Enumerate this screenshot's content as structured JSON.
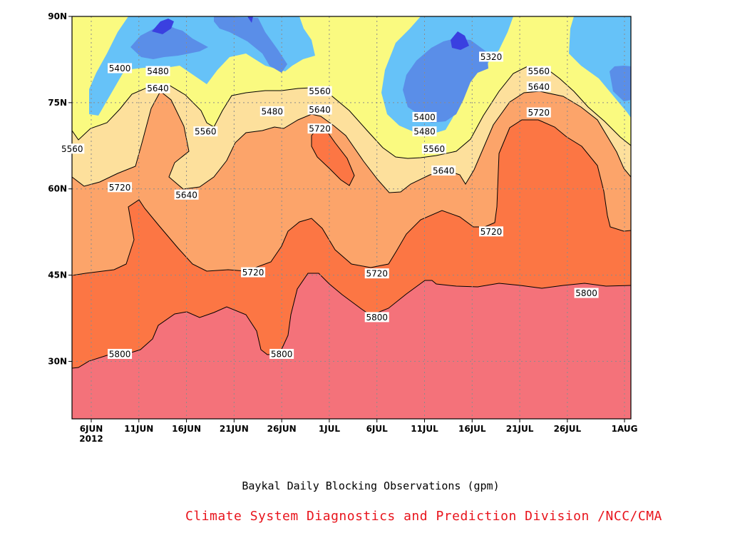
{
  "chart_data": {
    "type": "contour",
    "title": "Baykal Daily Blocking Observations (gpm)",
    "credit": "Climate System Diagnostics and Prediction Division /NCC/CMA",
    "x_ticks": [
      "6JUN",
      "11JUN",
      "16JUN",
      "21JUN",
      "26JUN",
      "1JUL",
      "6JUL",
      "11JUL",
      "16JUL",
      "21JUL",
      "26JUL",
      "1AUG"
    ],
    "x_year_label": "2012",
    "y_ticks": [
      "30N",
      "45N",
      "60N",
      "75N",
      "90N"
    ],
    "ylim": [
      20,
      90
    ],
    "contour_levels": [
      5320,
      5400,
      5480,
      5560,
      5640,
      5720,
      5800
    ],
    "contour_labels": [
      {
        "text": "5320",
        "date": "18JUL",
        "lat": 83
      },
      {
        "text": "5400",
        "date": "9JUN",
        "lat": 81
      },
      {
        "text": "5480",
        "date": "13JUN",
        "lat": 80.5
      },
      {
        "text": "5480",
        "date": "25JUN",
        "lat": 73.5
      },
      {
        "text": "5400",
        "date": "11JUL",
        "lat": 72.5
      },
      {
        "text": "5480",
        "date": "11JUL",
        "lat": 70
      },
      {
        "text": "5560",
        "date": "4JUN",
        "lat": 67
      },
      {
        "text": "5560",
        "date": "18JUN",
        "lat": 70
      },
      {
        "text": "5560",
        "date": "30JUN",
        "lat": 77
      },
      {
        "text": "5560",
        "date": "12JUL",
        "lat": 67
      },
      {
        "text": "5560",
        "date": "23JUL",
        "lat": 80.5
      },
      {
        "text": "5640",
        "date": "13JUN",
        "lat": 77.5
      },
      {
        "text": "5640",
        "date": "30JUN",
        "lat": 73.8
      },
      {
        "text": "5640",
        "date": "16JUN",
        "lat": 59
      },
      {
        "text": "5640",
        "date": "13JUL",
        "lat": 63.2
      },
      {
        "text": "5640",
        "date": "23JUL",
        "lat": 77.8
      },
      {
        "text": "5720",
        "date": "30JUN",
        "lat": 70.5
      },
      {
        "text": "5720",
        "date": "9JUN",
        "lat": 60.3
      },
      {
        "text": "5720",
        "date": "23JUN",
        "lat": 45.5
      },
      {
        "text": "5720",
        "date": "6JUL",
        "lat": 45.3
      },
      {
        "text": "5720",
        "date": "18JUL",
        "lat": 52.6
      },
      {
        "text": "5720",
        "date": "23JUL",
        "lat": 73.3
      },
      {
        "text": "5800",
        "date": "9JUN",
        "lat": 31.3
      },
      {
        "text": "5800",
        "date": "26JUN",
        "lat": 31.3
      },
      {
        "text": "5800",
        "date": "6JUL",
        "lat": 37.7
      },
      {
        "text": "5800",
        "date": "28JUL",
        "lat": 41.9
      }
    ],
    "fill_colors": {
      "below_5320": "#3a40e0",
      "5320_5400": "#5a8ee8",
      "5400_5480": "#66c2f8",
      "5480_5560": "#fafa80",
      "5560_5640": "#fde09c",
      "5640_5720": "#fca46a",
      "5720_5800": "#fc7644",
      "above_5800": "#f4727a"
    },
    "grid": true
  }
}
